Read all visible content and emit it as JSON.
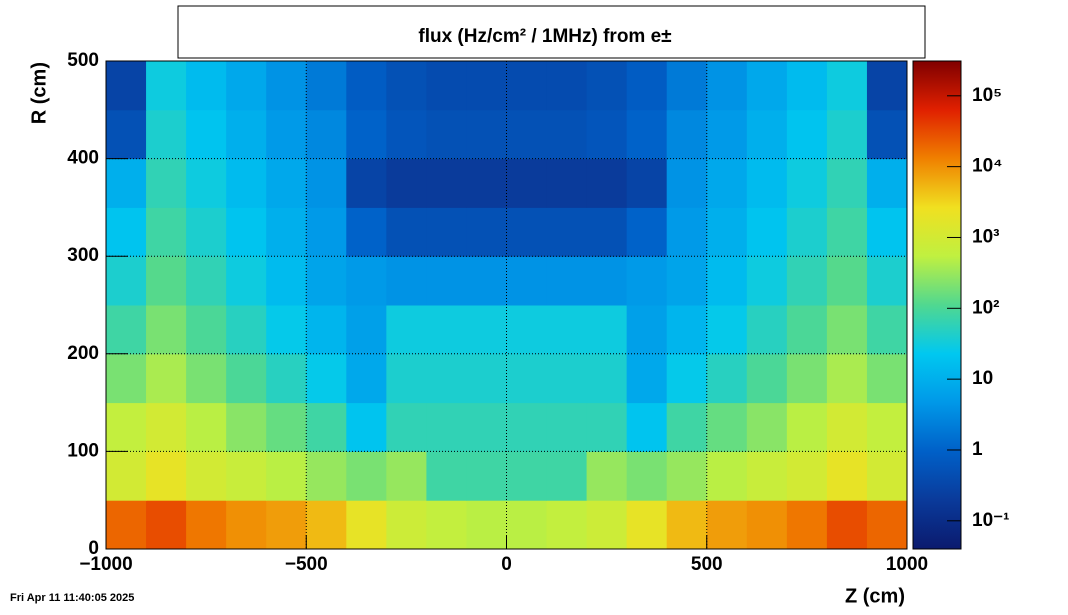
{
  "chart_data": {
    "type": "heatmap",
    "title": "flux (Hz/cm² / 1MHz) from e±",
    "xlabel": "Z (cm)",
    "ylabel": "R (cm)",
    "timestamp": "Fri Apr 11 11:40:05 2025",
    "x_bins": [
      -1000,
      -900,
      -800,
      -700,
      -600,
      -500,
      -400,
      -300,
      -200,
      -100,
      0,
      100,
      200,
      300,
      400,
      500,
      600,
      700,
      800,
      900,
      1000
    ],
    "y_bins": [
      0,
      50,
      100,
      150,
      200,
      250,
      300,
      350,
      400,
      450,
      500
    ],
    "z": [
      [
        20000,
        30000,
        15000,
        10000,
        8000,
        5000,
        2000,
        800,
        600,
        500,
        500,
        600,
        800,
        2000,
        5000,
        8000,
        10000,
        15000,
        30000,
        20000
      ],
      [
        1000,
        2000,
        1000,
        700,
        500,
        300,
        200,
        300,
        80,
        80,
        80,
        80,
        300,
        200,
        300,
        500,
        700,
        1000,
        2000,
        1000
      ],
      [
        600,
        1000,
        500,
        250,
        150,
        80,
        20,
        60,
        60,
        60,
        60,
        60,
        60,
        20,
        80,
        150,
        250,
        500,
        1000,
        600
      ],
      [
        200,
        400,
        200,
        100,
        50,
        25,
        8,
        40,
        40,
        40,
        40,
        40,
        40,
        8,
        25,
        50,
        100,
        200,
        400,
        200
      ],
      [
        80,
        200,
        100,
        50,
        25,
        12,
        6,
        30,
        30,
        30,
        30,
        30,
        30,
        6,
        12,
        25,
        50,
        100,
        200,
        80
      ],
      [
        40,
        120,
        60,
        30,
        15,
        7,
        5,
        4,
        4,
        4,
        4,
        4,
        4,
        5,
        7,
        15,
        30,
        60,
        120,
        40
      ],
      [
        20,
        80,
        40,
        20,
        10,
        5,
        1,
        0.5,
        0.5,
        0.5,
        0.5,
        0.5,
        0.5,
        1,
        5,
        10,
        20,
        40,
        80,
        20
      ],
      [
        10,
        60,
        30,
        15,
        8,
        4,
        0.3,
        0.2,
        0.2,
        0.2,
        0.2,
        0.2,
        0.2,
        0.3,
        4,
        8,
        15,
        30,
        60,
        10
      ],
      [
        0.5,
        40,
        20,
        10,
        5,
        3,
        1,
        0.6,
        0.5,
        0.5,
        0.5,
        0.5,
        0.6,
        1,
        3,
        5,
        10,
        20,
        40,
        0.5
      ],
      [
        0.3,
        30,
        15,
        8,
        4,
        2,
        0.8,
        0.5,
        0.4,
        0.4,
        0.4,
        0.4,
        0.5,
        0.8,
        2,
        4,
        8,
        15,
        30,
        0.3
      ]
    ],
    "xlim": [
      -1000,
      1000
    ],
    "xticks": [
      {
        "value": -1000,
        "label": "−1000"
      },
      {
        "value": -500,
        "label": "−500"
      },
      0,
      500,
      1000
    ],
    "ylim": [
      0,
      500
    ],
    "yticks": [
      0,
      100,
      200,
      300,
      400,
      500
    ],
    "zlim": [
      0.04,
      310000
    ],
    "zlog": true,
    "zticks": [
      {
        "value": 0.1,
        "label": "10⁻¹"
      },
      1,
      10,
      {
        "value": 100,
        "label": "10²"
      },
      {
        "value": 1000,
        "label": "10³"
      },
      {
        "value": 10000,
        "label": "10⁴"
      },
      {
        "value": 100000,
        "label": "10⁵"
      }
    ],
    "colormap": [
      "#0b1a6e",
      "#0a3a9a",
      "#0060c8",
      "#0098e8",
      "#00c8f0",
      "#50d890",
      "#c0f040",
      "#f0e020",
      "#f08000",
      "#e02000",
      "#800000"
    ],
    "grid": true
  }
}
